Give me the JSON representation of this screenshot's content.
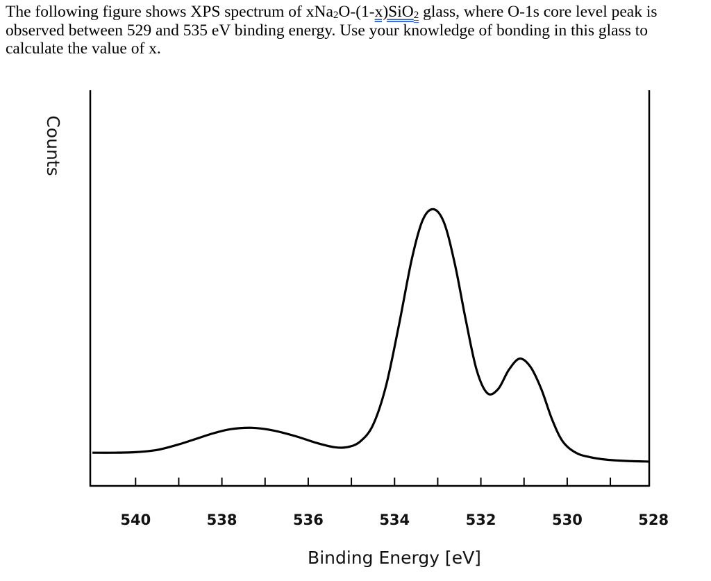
{
  "question": {
    "part1": "The following figure shows XPS spectrum of xNa",
    "sub1": "2",
    "part2": "O-(1-",
    "flagged": "x)SiO",
    "sub2": "2",
    "part3": " glass, where O-1s core level peak is observed between 529 and 535 eV binding energy. Use your knowledge of bonding in this glass to calculate the value of x."
  },
  "chart_data": {
    "type": "line",
    "title": "",
    "xlabel": "Binding Energy  [eV]",
    "ylabel": "Counts",
    "xlim": [
      541.05,
      528.1
    ],
    "x_reversed": true,
    "ylim": [
      0,
      1.43
    ],
    "y_units": "relative (no tick labels printed)",
    "grid": false,
    "x_ticks": [
      "540",
      "538",
      "536",
      "534",
      "532",
      "530",
      "528"
    ],
    "x_tick_values": [
      540,
      538,
      536,
      534,
      532,
      530,
      528
    ],
    "series": [
      {
        "color": "#000000",
        "x": [
          541.0,
          540.5,
          540.0,
          539.5,
          539.0,
          538.6,
          538.2,
          537.8,
          537.3,
          536.8,
          536.3,
          535.8,
          535.4,
          535.1,
          534.8,
          534.5,
          534.2,
          533.9,
          533.6,
          533.35,
          533.1,
          532.85,
          532.6,
          532.35,
          532.1,
          531.85,
          531.6,
          531.35,
          531.1,
          530.85,
          530.6,
          530.35,
          530.1,
          529.8,
          529.5,
          529.1,
          528.6,
          528.1
        ],
        "y": [
          0.12,
          0.12,
          0.122,
          0.13,
          0.15,
          0.17,
          0.19,
          0.205,
          0.21,
          0.2,
          0.18,
          0.155,
          0.14,
          0.14,
          0.16,
          0.22,
          0.36,
          0.58,
          0.82,
          0.96,
          1.0,
          0.95,
          0.8,
          0.6,
          0.42,
          0.335,
          0.35,
          0.42,
          0.46,
          0.43,
          0.35,
          0.24,
          0.16,
          0.12,
          0.105,
          0.095,
          0.09,
          0.088
        ]
      }
    ]
  }
}
